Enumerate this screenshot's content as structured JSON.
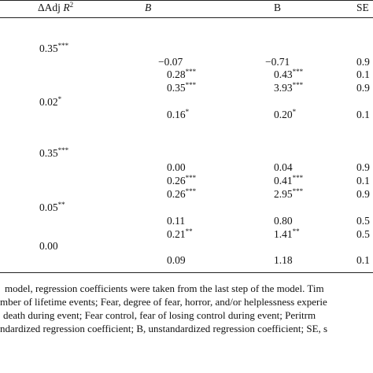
{
  "header": {
    "col_adj_prefix": "ΔAdj ",
    "col_adj_var": "R",
    "col_adj_sup": "2",
    "col_b_italic": "B",
    "col_b_roman": "B",
    "col_se": "SE"
  },
  "adj_values": [
    {
      "val": "0.35",
      "stars": "***"
    },
    {
      "val": "0.02",
      "stars": "*"
    },
    {
      "val": "0.35",
      "stars": "***"
    },
    {
      "val": "0.05",
      "stars": "**"
    },
    {
      "val": "0.00",
      "stars": ""
    }
  ],
  "rows": [
    {
      "b": "−0.07",
      "b_stars": "",
      "B": "−0.71",
      "B_stars": "",
      "se": "0.9"
    },
    {
      "b": "0.28",
      "b_stars": "***",
      "B": "0.43",
      "B_stars": "***",
      "se": "0.1"
    },
    {
      "b": "0.35",
      "b_stars": "***",
      "B": "3.93",
      "B_stars": "***",
      "se": "0.9"
    },
    {
      "b": "0.16",
      "b_stars": "*",
      "B": "0.20",
      "B_stars": "*",
      "se": "0.1"
    },
    {
      "b": "0.00",
      "b_stars": "",
      "B": "0.04",
      "B_stars": "",
      "se": "0.9"
    },
    {
      "b": "0.26",
      "b_stars": "***",
      "B": "0.41",
      "B_stars": "***",
      "se": "0.1"
    },
    {
      "b": "0.26",
      "b_stars": "***",
      "B": "2.95",
      "B_stars": "***",
      "se": "0.9"
    },
    {
      "b": "0.11",
      "b_stars": "",
      "B": "0.80",
      "B_stars": "",
      "se": "0.5"
    },
    {
      "b": "0.21",
      "b_stars": "**",
      "B": "1.41",
      "B_stars": "**",
      "se": "0.5"
    },
    {
      "b": "0.09",
      "b_stars": "",
      "B": "1.18",
      "B_stars": "",
      "se": "0.1"
    }
  ],
  "notes": [
    "model, regression coefficients were taken from the last step of the model. Tim",
    "mber of lifetime events; Fear, degree of fear, horror, and/or helplessness experie",
    "death during event; Fear control, fear of losing control during event; Peritrm",
    "ndardized regression coefficient; B, unstandardized regression coefficient; SE, s"
  ]
}
